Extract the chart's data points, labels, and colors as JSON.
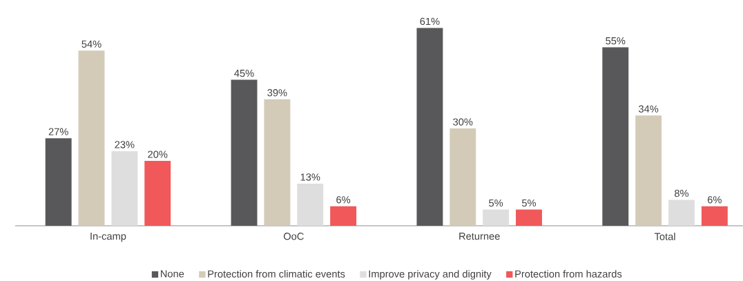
{
  "chart_data": {
    "type": "bar",
    "categories": [
      "In-camp",
      "OoC",
      "Returnee",
      "Total"
    ],
    "series": [
      {
        "name": "None",
        "color": "#58585a",
        "values": [
          27,
          45,
          61,
          55
        ],
        "value_labels": [
          "27%",
          "45%",
          "61%",
          "55%"
        ]
      },
      {
        "name": "Protection from climatic events",
        "color": "#d3cbb8",
        "values": [
          54,
          39,
          30,
          34
        ],
        "value_labels": [
          "54%",
          "39%",
          "30%",
          "34%"
        ]
      },
      {
        "name": "Improve privacy and dignity",
        "color": "#dedede",
        "values": [
          23,
          13,
          5,
          8
        ],
        "value_labels": [
          "23%",
          "13%",
          "5%",
          "8%"
        ]
      },
      {
        "name": "Protection from hazards",
        "color": "#f0585a",
        "values": [
          20,
          6,
          5,
          6
        ],
        "value_labels": [
          "20%",
          "6%",
          "5%",
          "6%"
        ]
      }
    ],
    "legend": "bottom"
  }
}
